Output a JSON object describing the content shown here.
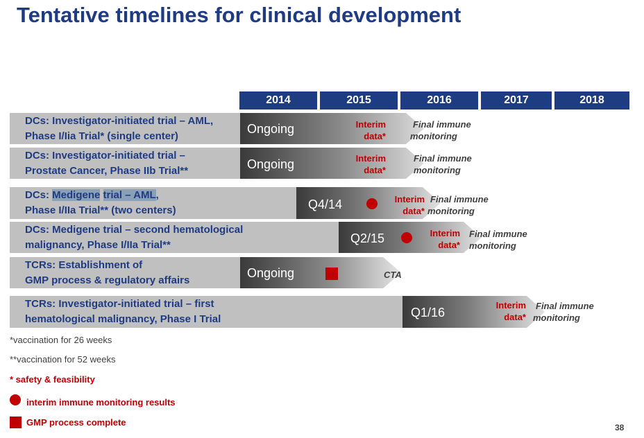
{
  "title": "Tentative timelines for clinical development",
  "years": [
    "2014",
    "2015",
    "2016",
    "2017",
    "2018"
  ],
  "rows": [
    {
      "line1": "DCs: Investigator-initiated trial – AML,",
      "line2": "Phase I/Iia Trial* (single center)",
      "bar_label": "Ongoing",
      "interim": "Interim",
      "interim_suffix": "data*",
      "final1": "Final immune",
      "final2": "monitoring"
    },
    {
      "line1": "DCs: Investigator-initiated trial –",
      "line2": "Prostate Cancer, Phase IIb Trial**",
      "bar_label": "Ongoing",
      "interim": "Interim",
      "interim_suffix": "data*",
      "final1": "Final immune",
      "final2": "monitoring"
    },
    {
      "line1_parts": [
        "DCs: ",
        "Medigene",
        " ",
        "trial – AML",
        ","
      ],
      "line2": "Phase I/IIa Trial** (two centers)",
      "bar_label": "Q4/14",
      "interim": "Interim",
      "interim_suffix": "data*",
      "final1": "Final immune",
      "final2": "monitoring"
    },
    {
      "line1": "DCs: Medigene trial – second hematological",
      "line2": "malignancy, Phase I/IIa Trial**",
      "bar_label": "Q2/15",
      "interim": "Interim",
      "interim_suffix": "data*",
      "final1": "Final immune",
      "final2": "monitoring"
    },
    {
      "line1": "TCRs: Establishment of",
      "line2": "GMP process & regulatory affairs",
      "bar_label": "Ongoing",
      "cta": "CTA"
    },
    {
      "line1": "TCRs: Investigator-initiated trial – first",
      "line2": "hematological malignancy, Phase I Trial",
      "bar_label": "Q1/16",
      "interim": "Interim",
      "interim_suffix": "data*",
      "final1": "Final immune",
      "final2": "monitoring"
    }
  ],
  "footnotes": {
    "vacc26": "*vaccination for 26 weeks",
    "vacc52": "**vaccination for 52 weeks",
    "safety": "* safety & feasibility",
    "interim_legend": "interim immune monitoring results",
    "gmp_legend": "GMP process complete"
  },
  "page_number": "38",
  "colors": {
    "title": "#1f3b84",
    "header": "#1e3c82",
    "accent": "#c00000",
    "row_bg": "#c0c0c0"
  }
}
